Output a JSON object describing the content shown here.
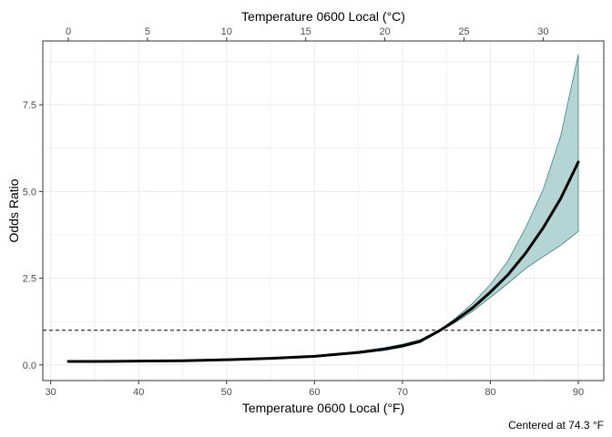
{
  "chart_data": {
    "type": "line",
    "title": "",
    "xlabel": "Temperature 0600 Local (°F)",
    "x2label": "Temperature 0600 Local (°C)",
    "ylabel": "Odds Ratio",
    "caption": "Centered at 74.3 °F",
    "xlim": [
      29.1,
      92.9
    ],
    "ylim": [
      -0.45,
      9.34
    ],
    "x_ticks": [
      30,
      40,
      50,
      60,
      70,
      80,
      90
    ],
    "x2_ticks": [
      0,
      5,
      10,
      15,
      20,
      25,
      30
    ],
    "y_ticks": [
      0.0,
      2.5,
      5.0,
      7.5
    ],
    "y_tick_labels": [
      "0.0",
      "2.5",
      "5.0",
      "7.5"
    ],
    "reference_line": {
      "y": 1.0,
      "style": "dashed"
    },
    "grid": true,
    "colors": {
      "line": "#000000",
      "ribbon_fill": "#b5d4d4",
      "ribbon_stroke": "#2f7474",
      "grid": "#ebebeb",
      "frame": "#333333"
    },
    "series": [
      {
        "x": [
          32,
          35,
          40,
          45,
          50,
          55,
          60,
          65,
          68,
          70,
          72,
          74.3,
          76,
          78,
          80,
          82,
          84,
          86,
          88,
          90
        ],
        "y": [
          0.1,
          0.1,
          0.11,
          0.12,
          0.15,
          0.19,
          0.25,
          0.36,
          0.46,
          0.55,
          0.68,
          1.0,
          1.28,
          1.65,
          2.1,
          2.6,
          3.22,
          3.95,
          4.8,
          5.85
        ],
        "lower": [
          0.08,
          0.08,
          0.09,
          0.1,
          0.13,
          0.17,
          0.23,
          0.33,
          0.42,
          0.51,
          0.64,
          0.98,
          1.22,
          1.55,
          1.95,
          2.35,
          2.78,
          3.12,
          3.45,
          3.85
        ],
        "upper": [
          0.12,
          0.12,
          0.13,
          0.14,
          0.17,
          0.21,
          0.27,
          0.39,
          0.5,
          0.6,
          0.73,
          1.02,
          1.34,
          1.78,
          2.32,
          3.0,
          3.95,
          5.05,
          6.6,
          8.95
        ]
      }
    ]
  }
}
